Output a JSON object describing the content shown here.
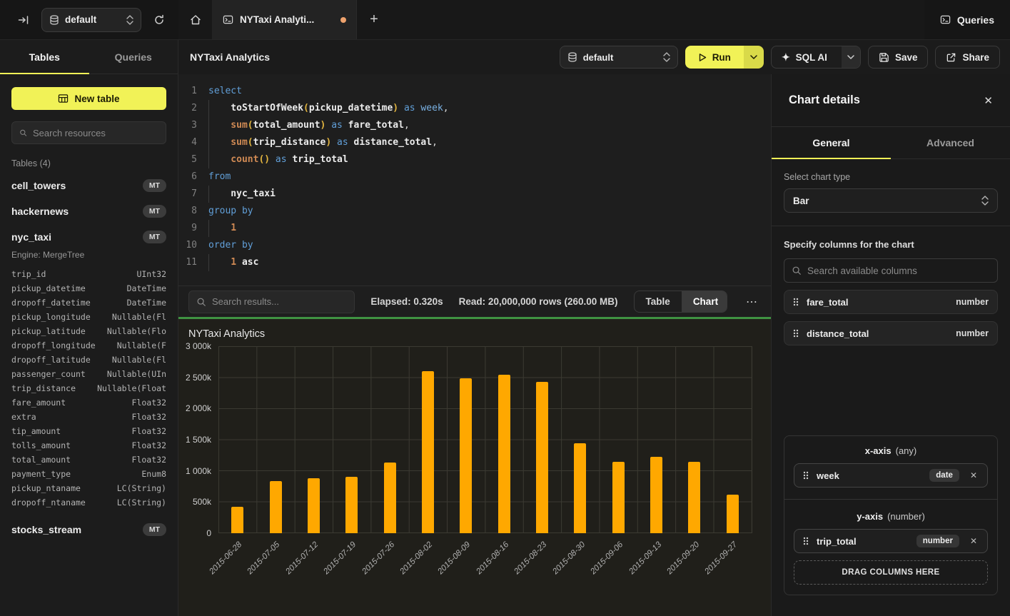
{
  "icons": {
    "sparkle": "✦",
    "ellipsis": "⋯",
    "plus": "+",
    "close": "✕"
  },
  "topbar": {
    "database": "default",
    "tab_title": "NYTaxi Analyti...",
    "queries": "Queries"
  },
  "sidebar": {
    "tab_tables": "Tables",
    "tab_queries": "Queries",
    "new_table": "New table",
    "search_placeholder": "Search resources",
    "section": "Tables (4)",
    "tables": [
      {
        "name": "cell_towers",
        "badge": "MT"
      },
      {
        "name": "hackernews",
        "badge": "MT"
      },
      {
        "name": "nyc_taxi",
        "badge": "MT"
      },
      {
        "name": "stocks_stream",
        "badge": "MT"
      }
    ],
    "nyc_taxi_engine": "Engine: MergeTree",
    "columns": [
      {
        "name": "trip_id",
        "type": "UInt32"
      },
      {
        "name": "pickup_datetime",
        "type": "DateTime"
      },
      {
        "name": "dropoff_datetime",
        "type": "DateTime"
      },
      {
        "name": "pickup_longitude",
        "type": "Nullable(Fl"
      },
      {
        "name": "pickup_latitude",
        "type": "Nullable(Flo"
      },
      {
        "name": "dropoff_longitude",
        "type": "Nullable(F"
      },
      {
        "name": "dropoff_latitude",
        "type": "Nullable(Fl"
      },
      {
        "name": "passenger_count",
        "type": "Nullable(UIn"
      },
      {
        "name": "trip_distance",
        "type": "Nullable(Float"
      },
      {
        "name": "fare_amount",
        "type": "Float32"
      },
      {
        "name": "extra",
        "type": "Float32"
      },
      {
        "name": "tip_amount",
        "type": "Float32"
      },
      {
        "name": "tolls_amount",
        "type": "Float32"
      },
      {
        "name": "total_amount",
        "type": "Float32"
      },
      {
        "name": "payment_type",
        "type": "Enum8"
      },
      {
        "name": "pickup_ntaname",
        "type": "LC(String)"
      },
      {
        "name": "dropoff_ntaname",
        "type": "LC(String)"
      }
    ]
  },
  "toolbar": {
    "title": "NYTaxi Analytics",
    "database": "default",
    "run": "Run",
    "sql_ai": "SQL AI",
    "save": "Save",
    "share": "Share"
  },
  "editor": {
    "lines": [
      {
        "n": "1",
        "t": [
          [
            "kw",
            "select"
          ]
        ]
      },
      {
        "n": "2",
        "t": [
          [
            "ws",
            ""
          ],
          [
            "fn",
            "toStartOfWeek"
          ],
          [
            "pa",
            "("
          ],
          [
            "id",
            "pickup_datetime"
          ],
          [
            "pa",
            ")"
          ],
          [
            "pn",
            " "
          ],
          [
            "kw",
            "as"
          ],
          [
            "pn",
            " "
          ],
          [
            "kw2",
            "week"
          ],
          [
            "pn",
            ","
          ]
        ]
      },
      {
        "n": "3",
        "t": [
          [
            "ws",
            ""
          ],
          [
            "or",
            "sum"
          ],
          [
            "pa",
            "("
          ],
          [
            "id",
            "total_amount"
          ],
          [
            "pa",
            ")"
          ],
          [
            "pn",
            " "
          ],
          [
            "kw",
            "as"
          ],
          [
            "pn",
            " "
          ],
          [
            "id",
            "fare_total"
          ],
          [
            "pn",
            ","
          ]
        ]
      },
      {
        "n": "4",
        "t": [
          [
            "ws",
            ""
          ],
          [
            "or",
            "sum"
          ],
          [
            "pa",
            "("
          ],
          [
            "id",
            "trip_distance"
          ],
          [
            "pa",
            ")"
          ],
          [
            "pn",
            " "
          ],
          [
            "kw",
            "as"
          ],
          [
            "pn",
            " "
          ],
          [
            "id",
            "distance_total"
          ],
          [
            "pn",
            ","
          ]
        ]
      },
      {
        "n": "5",
        "t": [
          [
            "ws",
            ""
          ],
          [
            "or",
            "count"
          ],
          [
            "pa",
            "()"
          ],
          [
            "pn",
            " "
          ],
          [
            "kw",
            "as"
          ],
          [
            "pn",
            " "
          ],
          [
            "id",
            "trip_total"
          ]
        ]
      },
      {
        "n": "6",
        "t": [
          [
            "kw",
            "from"
          ]
        ]
      },
      {
        "n": "7",
        "t": [
          [
            "ws",
            ""
          ],
          [
            "id",
            "nyc_taxi"
          ]
        ]
      },
      {
        "n": "8",
        "t": [
          [
            "kw",
            "group by"
          ]
        ]
      },
      {
        "n": "9",
        "t": [
          [
            "ws",
            ""
          ],
          [
            "nu",
            "1"
          ]
        ]
      },
      {
        "n": "10",
        "t": [
          [
            "kw",
            "order by"
          ]
        ]
      },
      {
        "n": "11",
        "t": [
          [
            "ws",
            ""
          ],
          [
            "nu",
            "1"
          ],
          [
            "pn",
            " "
          ],
          [
            "id",
            "asc"
          ]
        ]
      }
    ]
  },
  "results_bar": {
    "search_placeholder": "Search results...",
    "elapsed": "Elapsed: 0.320s",
    "read": "Read: 20,000,000 rows (260.00 MB)",
    "table": "Table",
    "chart": "Chart"
  },
  "chart_data": {
    "type": "bar",
    "title": "NYTaxi Analytics",
    "x": [
      "2015-06-28",
      "2015-07-05",
      "2015-07-12",
      "2015-07-19",
      "2015-07-26",
      "2015-08-02",
      "2015-08-09",
      "2015-08-16",
      "2015-08-23",
      "2015-08-30",
      "2015-09-06",
      "2015-09-13",
      "2015-09-20",
      "2015-09-27"
    ],
    "series": [
      {
        "name": "trip_total",
        "values": [
          430000,
          840000,
          885000,
          910000,
          1140000,
          2610000,
          2500000,
          2550000,
          2440000,
          1450000,
          1150000,
          1230000,
          1150000,
          620000
        ]
      }
    ],
    "xlabel": "week",
    "ylabel": "trip_total",
    "ylim": [
      0,
      3000000
    ],
    "y_ticks": [
      "0",
      "500k",
      "1 000k",
      "1 500k",
      "2 000k",
      "2 500k",
      "3 000k"
    ],
    "bar_color": "#ffa800",
    "grid": true,
    "legend": false
  },
  "chart_panel": {
    "title": "Chart details",
    "tab_general": "General",
    "tab_advanced": "Advanced",
    "chart_type_label": "Select chart type",
    "chart_type": "Bar",
    "columns_label": "Specify columns for the chart",
    "search_placeholder": "Search available columns",
    "available_columns": [
      {
        "name": "fare_total",
        "type": "number"
      },
      {
        "name": "distance_total",
        "type": "number"
      }
    ],
    "x_axis": {
      "title": "x-axis",
      "constraint": "(any)",
      "column": "week",
      "type": "date"
    },
    "y_axis": {
      "title": "y-axis",
      "constraint": "(number)",
      "column": "trip_total",
      "type": "number"
    },
    "drop_zone": "DRAG COLUMNS HERE"
  }
}
